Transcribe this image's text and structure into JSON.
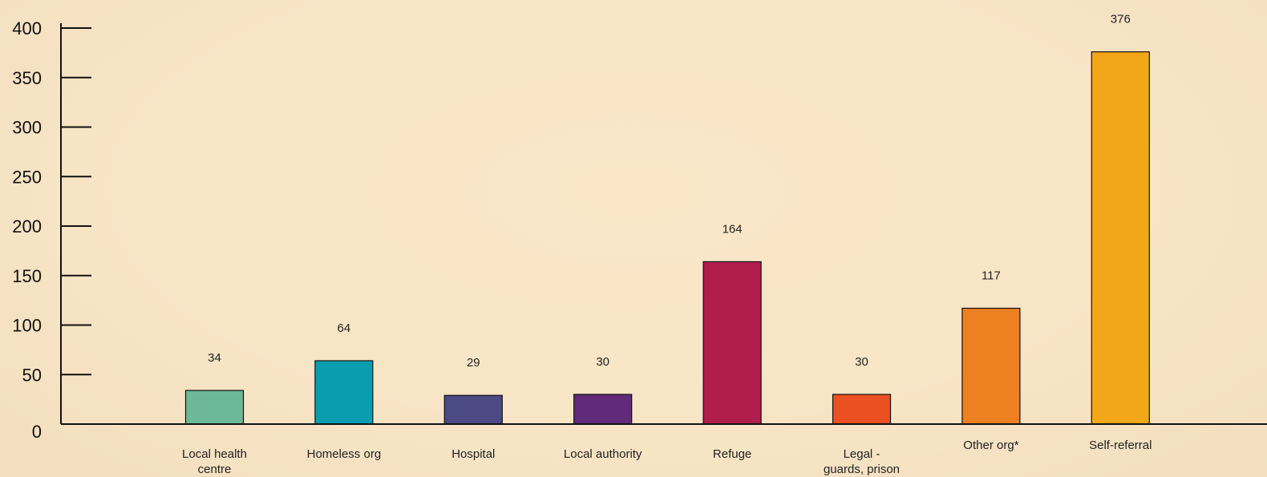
{
  "chart_data": {
    "type": "bar",
    "title": "",
    "xlabel": "",
    "ylabel": "",
    "ylim": [
      0,
      400
    ],
    "yticks": [
      0,
      50,
      100,
      150,
      200,
      250,
      300,
      350,
      400
    ],
    "categories": [
      "Local health centre",
      "Homeless org",
      "Hospital",
      "Local authority",
      "Refuge",
      "Legal - guards, prison",
      "Other org*",
      "Self-referral"
    ],
    "category_label_lines": [
      [
        "Local health",
        "centre"
      ],
      [
        "Homeless org"
      ],
      [
        "Hospital"
      ],
      [
        "Local authority"
      ],
      [
        "Refuge"
      ],
      [
        "Legal -",
        "guards, prison"
      ],
      [
        "Other org*"
      ],
      [
        "Self-referral"
      ]
    ],
    "values": [
      34,
      64,
      29,
      30,
      164,
      30,
      117,
      376
    ],
    "colors": [
      "#6db896",
      "#0a9db0",
      "#4c4a84",
      "#622a7a",
      "#b11d4d",
      "#ea5021",
      "#ed8021",
      "#f2a71a"
    ],
    "grid": false,
    "legend": "none"
  }
}
